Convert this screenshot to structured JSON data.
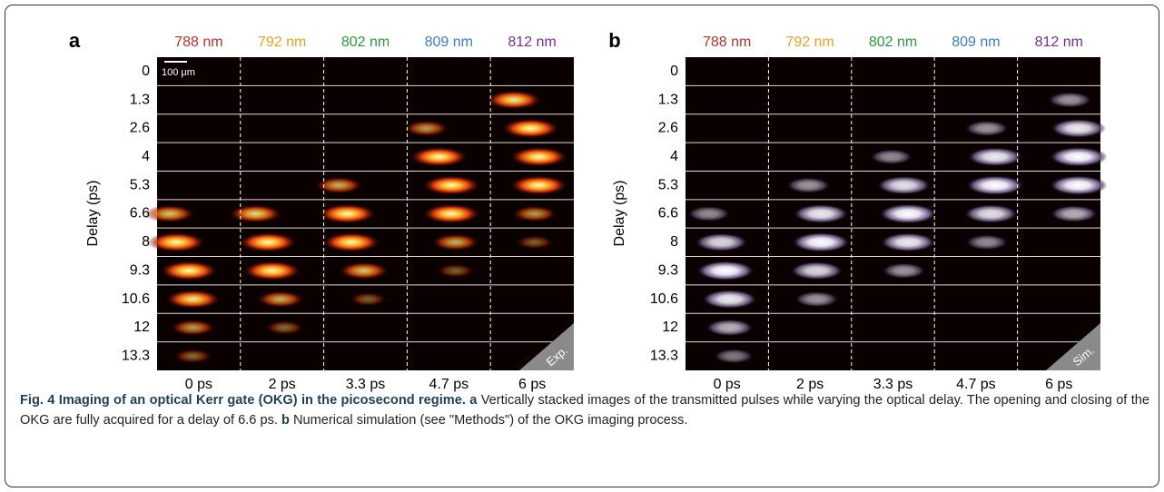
{
  "panels": [
    {
      "label": "a",
      "wavelengths": [
        {
          "text": "788 nm",
          "color": "#c0302a"
        },
        {
          "text": "792 nm",
          "color": "#f0a020"
        },
        {
          "text": "802 nm",
          "color": "#2a9a3a"
        },
        {
          "text": "809 nm",
          "color": "#3a7cc8"
        },
        {
          "text": "812 nm",
          "color": "#7a2a9a"
        }
      ],
      "delays": [
        "0",
        "1.3",
        "2.6",
        "4",
        "5.3",
        "6.6",
        "8",
        "9.3",
        "10.6",
        "12",
        "13.3"
      ],
      "times": [
        "0 ps",
        "2 ps",
        "3.3 ps",
        "4.7 ps",
        "6 ps"
      ],
      "y_label": "Delay (ps)",
      "scale_bar": "100 μm",
      "tag": "Exp."
    },
    {
      "label": "b",
      "wavelengths": [
        {
          "text": "788 nm",
          "color": "#c0302a"
        },
        {
          "text": "792 nm",
          "color": "#f0a020"
        },
        {
          "text": "802 nm",
          "color": "#2a9a3a"
        },
        {
          "text": "809 nm",
          "color": "#3a7cc8"
        },
        {
          "text": "812 nm",
          "color": "#7a2a9a"
        }
      ],
      "delays": [
        "0",
        "1.3",
        "2.6",
        "4",
        "5.3",
        "6.6",
        "8",
        "9.3",
        "10.6",
        "12",
        "13.3"
      ],
      "times": [
        "0 ps",
        "2 ps",
        "3.3 ps",
        "4.7 ps",
        "6 ps"
      ],
      "y_label": "Delay (ps)",
      "tag": "Sim."
    }
  ],
  "caption": [
    {
      "text": "Fig. 4 Imaging of an optical Kerr gate (OKG) in the picosecond regime.",
      "bold": true
    },
    {
      "text": " a",
      "bold": true
    },
    {
      "text": " Vertically stacked images of the transmitted pulses while varying the optical delay. The opening and closing of the OKG are fully acquired for a delay of 6.6 ps. ",
      "bold": false
    },
    {
      "text": "b",
      "bold": true
    },
    {
      "text": " Numerical simulation (see \"Methods\") of the OKG imaging process.",
      "bold": false
    }
  ]
}
